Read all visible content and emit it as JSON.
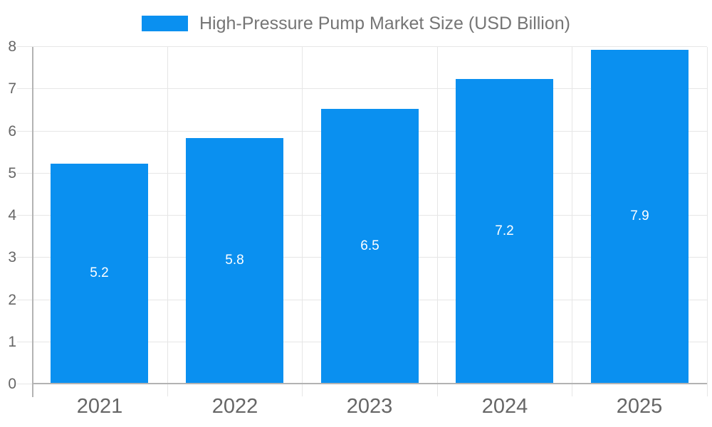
{
  "chart_data": {
    "type": "bar",
    "title": "High-Pressure Pump Market Size (USD Billion)",
    "categories": [
      "2021",
      "2022",
      "2023",
      "2024",
      "2025"
    ],
    "values": [
      5.2,
      5.8,
      6.5,
      7.2,
      7.9
    ],
    "bar_labels": [
      "5.2",
      "5.8",
      "6.5",
      "7.2",
      "7.9"
    ],
    "xlabel": "",
    "ylabel": "",
    "ylim": [
      0,
      8
    ],
    "y_ticks": [
      "0",
      "1",
      "2",
      "3",
      "4",
      "5",
      "6",
      "7",
      "8"
    ],
    "grid": "on",
    "legend_position": "top"
  },
  "colors": {
    "bar": "#0a90f0",
    "bar_label": "#ffffff",
    "gridline": "#e6e6e6",
    "axis_line": "#b3b3b3",
    "tick_label": "#666666",
    "legend_text": "#757575",
    "background": "#ffffff"
  }
}
